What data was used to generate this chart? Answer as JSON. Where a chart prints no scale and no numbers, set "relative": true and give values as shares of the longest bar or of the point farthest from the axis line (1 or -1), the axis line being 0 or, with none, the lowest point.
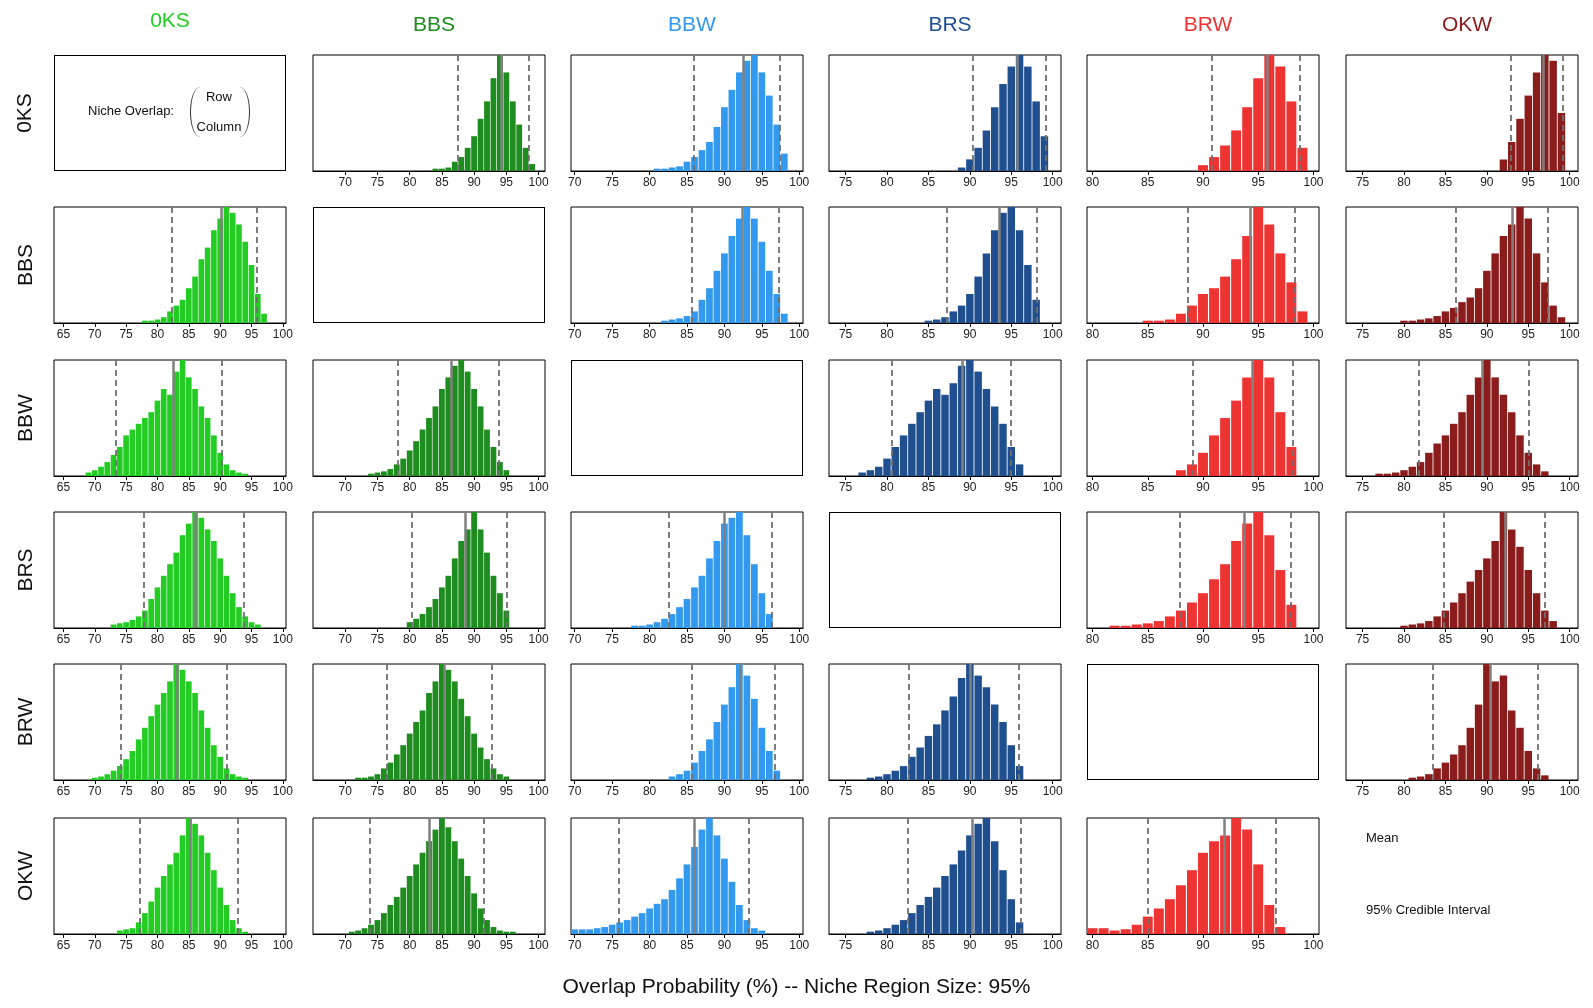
{
  "chart_data": [
    {
      "type": "other",
      "title": "0KS",
      "ylabel": "0KS",
      "annotations": [
        "Niche Overlap:",
        "Row",
        "Column"
      ]
    },
    {
      "type": "bar",
      "title": "BBS",
      "color": "#1e8c1e",
      "relative": true,
      "tick_labels": "x",
      "xlim": [
        65,
        101
      ],
      "xticks": [
        70,
        75,
        80,
        85,
        90,
        95,
        100
      ],
      "x": [
        84,
        85,
        86,
        87,
        88,
        89,
        90,
        91,
        92,
        93,
        94,
        95,
        96,
        97,
        98,
        99
      ],
      "values": [
        0.02,
        0.02,
        0.03,
        0.08,
        0.12,
        0.2,
        0.3,
        0.45,
        0.6,
        0.8,
        1,
        0.85,
        0.6,
        0.4,
        0.2,
        0.06
      ],
      "ref_lines": [
        {
          "axis": "x",
          "value": 94.2,
          "line_style": "solid",
          "color": "#808080"
        },
        {
          "axis": "x",
          "value": 87.4,
          "line_style": "dashed",
          "color": "#707070"
        },
        {
          "axis": "x",
          "value": 98.5,
          "line_style": "dashed",
          "color": "#707070"
        }
      ]
    },
    {
      "type": "bar",
      "title": "BBW",
      "color": "#3399ee",
      "relative": true,
      "tick_labels": "x",
      "xlim": [
        69.5,
        100.5
      ],
      "xticks": [
        70,
        75,
        80,
        85,
        90,
        95,
        100
      ],
      "x": [
        81,
        82,
        83,
        84,
        85,
        86,
        87,
        88,
        89,
        90,
        91,
        92,
        93,
        94,
        95,
        96,
        97,
        98
      ],
      "values": [
        0.02,
        0.02,
        0.03,
        0.04,
        0.08,
        0.12,
        0.18,
        0.25,
        0.38,
        0.55,
        0.7,
        0.85,
        0.95,
        1,
        0.85,
        0.65,
        0.4,
        0.15
      ],
      "ref_lines": [
        {
          "axis": "x",
          "value": 92.5,
          "line_style": "solid",
          "color": "#808080"
        },
        {
          "axis": "x",
          "value": 85.9,
          "line_style": "dashed",
          "color": "#707070"
        },
        {
          "axis": "x",
          "value": 97.4,
          "line_style": "dashed",
          "color": "#707070"
        }
      ]
    },
    {
      "type": "bar",
      "title": "BRS",
      "color": "#1f4f8f",
      "relative": true,
      "tick_labels": "x",
      "xlim": [
        73,
        101
      ],
      "xticks": [
        75,
        80,
        85,
        90,
        95,
        100
      ],
      "x": [
        89,
        90,
        91,
        92,
        93,
        94,
        95,
        96,
        97,
        98,
        99
      ],
      "values": [
        0.03,
        0.1,
        0.2,
        0.35,
        0.55,
        0.75,
        0.9,
        1,
        0.9,
        0.6,
        0.3
      ],
      "ref_lines": [
        {
          "axis": "x",
          "value": 95.7,
          "line_style": "solid",
          "color": "#808080"
        },
        {
          "axis": "x",
          "value": 90.4,
          "line_style": "dashed",
          "color": "#707070"
        },
        {
          "axis": "x",
          "value": 99.2,
          "line_style": "dashed",
          "color": "#707070"
        }
      ]
    },
    {
      "type": "bar",
      "title": "BRW",
      "color": "#ee3333",
      "relative": true,
      "tick_labels": "x",
      "xlim": [
        79.5,
        100.5
      ],
      "xticks": [
        80,
        85,
        90,
        95,
        100
      ],
      "x": [
        90,
        91,
        92,
        93,
        94,
        95,
        96,
        97,
        98,
        99
      ],
      "values": [
        0.05,
        0.12,
        0.22,
        0.35,
        0.55,
        0.8,
        1,
        0.9,
        0.6,
        0.2
      ],
      "ref_lines": [
        {
          "axis": "x",
          "value": 95.8,
          "line_style": "solid",
          "color": "#808080"
        },
        {
          "axis": "x",
          "value": 90.8,
          "line_style": "dashed",
          "color": "#707070"
        },
        {
          "axis": "x",
          "value": 98.8,
          "line_style": "dashed",
          "color": "#707070"
        }
      ]
    },
    {
      "type": "bar",
      "title": "OKW",
      "color": "#8b1c1c",
      "relative": true,
      "tick_labels": "x",
      "xlim": [
        73,
        101
      ],
      "xticks": [
        75,
        80,
        85,
        90,
        95,
        100
      ],
      "x": [
        92,
        93,
        94,
        95,
        96,
        97,
        98,
        99
      ],
      "values": [
        0.1,
        0.25,
        0.45,
        0.65,
        0.85,
        1,
        0.95,
        0.5
      ],
      "ref_lines": [
        {
          "axis": "x",
          "value": 96.8,
          "line_style": "solid",
          "color": "#808080"
        },
        {
          "axis": "x",
          "value": 92.9,
          "line_style": "dashed",
          "color": "#707070"
        },
        {
          "axis": "x",
          "value": 99.1,
          "line_style": "dashed",
          "color": "#707070"
        }
      ]
    },
    {
      "type": "bar",
      "ylabel": "BBS",
      "color": "#22cc22",
      "relative": true,
      "tick_labels": "x",
      "xlim": [
        63.5,
        100.5
      ],
      "xticks": [
        65,
        70,
        75,
        80,
        85,
        90,
        95,
        100
      ],
      "x": [
        78,
        79,
        80,
        81,
        82,
        83,
        84,
        85,
        86,
        87,
        88,
        89,
        90,
        91,
        92,
        93,
        94,
        95,
        96,
        97
      ],
      "values": [
        0.02,
        0.02,
        0.03,
        0.05,
        0.1,
        0.15,
        0.2,
        0.3,
        0.4,
        0.55,
        0.65,
        0.8,
        0.9,
        1,
        0.95,
        0.85,
        0.7,
        0.5,
        0.25,
        0.08
      ],
      "ref_lines": [
        {
          "axis": "x",
          "value": 90.2,
          "line_style": "solid",
          "color": "#808080"
        },
        {
          "axis": "x",
          "value": 82.3,
          "line_style": "dashed",
          "color": "#707070"
        },
        {
          "axis": "x",
          "value": 95.9,
          "line_style": "dashed",
          "color": "#707070"
        }
      ]
    },
    {
      "type": "bar",
      "color": "#3399ee",
      "relative": true,
      "tick_labels": "x",
      "xlim": [
        69.5,
        100.5
      ],
      "xticks": [
        70,
        75,
        80,
        85,
        90,
        95,
        100
      ],
      "x": [
        82,
        83,
        84,
        85,
        86,
        87,
        88,
        89,
        90,
        91,
        92,
        93,
        94,
        95,
        96,
        97,
        98
      ],
      "values": [
        0.02,
        0.03,
        0.04,
        0.06,
        0.1,
        0.2,
        0.3,
        0.45,
        0.6,
        0.75,
        0.9,
        1,
        0.9,
        0.7,
        0.45,
        0.25,
        0.08
      ],
      "ref_lines": [
        {
          "axis": "x",
          "value": 92.4,
          "line_style": "solid",
          "color": "#808080"
        },
        {
          "axis": "x",
          "value": 85.7,
          "line_style": "dashed",
          "color": "#707070"
        },
        {
          "axis": "x",
          "value": 97.3,
          "line_style": "dashed",
          "color": "#707070"
        }
      ]
    },
    {
      "type": "bar",
      "color": "#1f4f8f",
      "relative": true,
      "tick_labels": "x",
      "xlim": [
        73,
        101
      ],
      "xticks": [
        75,
        80,
        85,
        90,
        95,
        100
      ],
      "x": [
        85,
        86,
        87,
        88,
        89,
        90,
        91,
        92,
        93,
        94,
        95,
        96,
        97,
        98
      ],
      "values": [
        0.02,
        0.03,
        0.05,
        0.1,
        0.15,
        0.25,
        0.4,
        0.6,
        0.8,
        0.95,
        1,
        0.8,
        0.5,
        0.2
      ],
      "ref_lines": [
        {
          "axis": "x",
          "value": 93.6,
          "line_style": "solid",
          "color": "#808080"
        },
        {
          "axis": "x",
          "value": 87.2,
          "line_style": "dashed",
          "color": "#707070"
        },
        {
          "axis": "x",
          "value": 98.1,
          "line_style": "dashed",
          "color": "#707070"
        }
      ]
    },
    {
      "type": "bar",
      "color": "#ee3333",
      "relative": true,
      "tick_labels": "x",
      "xlim": [
        79.5,
        100.5
      ],
      "xticks": [
        80,
        85,
        90,
        95,
        100
      ],
      "x": [
        85,
        86,
        87,
        88,
        89,
        90,
        91,
        92,
        93,
        94,
        95,
        96,
        97,
        98,
        99
      ],
      "values": [
        0.02,
        0.02,
        0.03,
        0.08,
        0.15,
        0.25,
        0.3,
        0.4,
        0.55,
        0.75,
        1,
        0.85,
        0.6,
        0.35,
        0.1
      ],
      "ref_lines": [
        {
          "axis": "x",
          "value": 94.3,
          "line_style": "solid",
          "color": "#808080"
        },
        {
          "axis": "x",
          "value": 88.6,
          "line_style": "dashed",
          "color": "#707070"
        },
        {
          "axis": "x",
          "value": 98.3,
          "line_style": "dashed",
          "color": "#707070"
        }
      ]
    },
    {
      "type": "bar",
      "color": "#8b1c1c",
      "relative": true,
      "tick_labels": "x",
      "xlim": [
        73,
        101
      ],
      "xticks": [
        75,
        80,
        85,
        90,
        95,
        100
      ],
      "x": [
        80,
        81,
        82,
        83,
        84,
        85,
        86,
        87,
        88,
        89,
        90,
        91,
        92,
        93,
        94,
        95,
        96,
        97,
        98,
        99
      ],
      "values": [
        0.02,
        0.02,
        0.03,
        0.04,
        0.06,
        0.1,
        0.13,
        0.18,
        0.22,
        0.3,
        0.45,
        0.6,
        0.75,
        0.85,
        1,
        0.9,
        0.6,
        0.35,
        0.15,
        0.05
      ],
      "ref_lines": [
        {
          "axis": "x",
          "value": 93.1,
          "line_style": "solid",
          "color": "#808080"
        },
        {
          "axis": "x",
          "value": 86.3,
          "line_style": "dashed",
          "color": "#707070"
        },
        {
          "axis": "x",
          "value": 97.4,
          "line_style": "dashed",
          "color": "#707070"
        }
      ]
    },
    {
      "type": "bar",
      "ylabel": "BBW",
      "color": "#22cc22",
      "relative": true,
      "tick_labels": "x",
      "xlim": [
        63.5,
        100.5
      ],
      "xticks": [
        65,
        70,
        75,
        80,
        85,
        90,
        95,
        100
      ],
      "x": [
        69,
        70,
        71,
        72,
        73,
        74,
        75,
        76,
        77,
        78,
        79,
        80,
        81,
        82,
        83,
        84,
        85,
        86,
        87,
        88,
        89,
        90,
        91,
        92,
        93,
        94
      ],
      "values": [
        0.03,
        0.05,
        0.08,
        0.12,
        0.18,
        0.25,
        0.35,
        0.4,
        0.45,
        0.5,
        0.55,
        0.65,
        0.75,
        0.7,
        0.9,
        1,
        0.85,
        0.75,
        0.6,
        0.5,
        0.35,
        0.2,
        0.1,
        0.05,
        0.03,
        0.02
      ],
      "ref_lines": [
        {
          "axis": "x",
          "value": 82.5,
          "line_style": "solid",
          "color": "#808080"
        },
        {
          "axis": "x",
          "value": 73.3,
          "line_style": "dashed",
          "color": "#707070"
        },
        {
          "axis": "x",
          "value": 90.2,
          "line_style": "dashed",
          "color": "#707070"
        }
      ]
    },
    {
      "type": "bar",
      "color": "#1e8c1e",
      "relative": true,
      "tick_labels": "x",
      "xlim": [
        65,
        101
      ],
      "xticks": [
        70,
        75,
        80,
        85,
        90,
        95,
        100
      ],
      "x": [
        74,
        75,
        76,
        77,
        78,
        79,
        80,
        81,
        82,
        83,
        84,
        85,
        86,
        87,
        88,
        89,
        90,
        91,
        92,
        93,
        94,
        95
      ],
      "values": [
        0.02,
        0.03,
        0.04,
        0.06,
        0.1,
        0.15,
        0.22,
        0.3,
        0.4,
        0.5,
        0.6,
        0.75,
        0.85,
        0.95,
        1,
        0.9,
        0.75,
        0.6,
        0.4,
        0.25,
        0.12,
        0.05
      ],
      "ref_lines": [
        {
          "axis": "x",
          "value": 86.4,
          "line_style": "solid",
          "color": "#808080"
        },
        {
          "axis": "x",
          "value": 78.2,
          "line_style": "dashed",
          "color": "#707070"
        },
        {
          "axis": "x",
          "value": 93.9,
          "line_style": "dashed",
          "color": "#707070"
        }
      ]
    },
    {
      "type": "bar",
      "color": "#1f4f8f",
      "relative": true,
      "tick_labels": "x",
      "xlim": [
        73,
        101
      ],
      "xticks": [
        75,
        80,
        85,
        90,
        95,
        100
      ],
      "x": [
        77,
        78,
        79,
        80,
        81,
        82,
        83,
        84,
        85,
        86,
        87,
        88,
        89,
        90,
        91,
        92,
        93,
        94,
        95,
        96
      ],
      "values": [
        0.03,
        0.05,
        0.08,
        0.15,
        0.25,
        0.35,
        0.45,
        0.55,
        0.65,
        0.75,
        0.7,
        0.8,
        0.95,
        1,
        0.9,
        0.75,
        0.6,
        0.45,
        0.25,
        0.1
      ],
      "ref_lines": [
        {
          "axis": "x",
          "value": 89.1,
          "line_style": "solid",
          "color": "#808080"
        },
        {
          "axis": "x",
          "value": 80.6,
          "line_style": "dashed",
          "color": "#707070"
        },
        {
          "axis": "x",
          "value": 94.9,
          "line_style": "dashed",
          "color": "#707070"
        }
      ]
    },
    {
      "type": "bar",
      "color": "#ee3333",
      "relative": true,
      "tick_labels": "x",
      "xlim": [
        79.5,
        100.5
      ],
      "xticks": [
        80,
        85,
        90,
        95,
        100
      ],
      "x": [
        88,
        89,
        90,
        91,
        92,
        93,
        94,
        95,
        96,
        97,
        98
      ],
      "values": [
        0.05,
        0.1,
        0.2,
        0.35,
        0.5,
        0.65,
        0.85,
        1,
        0.85,
        0.55,
        0.25
      ],
      "ref_lines": [
        {
          "axis": "x",
          "value": 94.5,
          "line_style": "solid",
          "color": "#808080"
        },
        {
          "axis": "x",
          "value": 89.1,
          "line_style": "dashed",
          "color": "#707070"
        },
        {
          "axis": "x",
          "value": 98.1,
          "line_style": "dashed",
          "color": "#707070"
        }
      ]
    },
    {
      "type": "bar",
      "color": "#8b1c1c",
      "relative": true,
      "tick_labels": "x",
      "xlim": [
        73,
        101
      ],
      "xticks": [
        75,
        80,
        85,
        90,
        95,
        100
      ],
      "x": [
        77,
        78,
        79,
        80,
        81,
        82,
        83,
        84,
        85,
        86,
        87,
        88,
        89,
        90,
        91,
        92,
        93,
        94,
        95,
        96,
        97
      ],
      "values": [
        0.02,
        0.02,
        0.03,
        0.05,
        0.08,
        0.12,
        0.2,
        0.28,
        0.35,
        0.45,
        0.55,
        0.7,
        0.85,
        1,
        0.85,
        0.7,
        0.55,
        0.35,
        0.2,
        0.1,
        0.04
      ],
      "ref_lines": [
        {
          "axis": "x",
          "value": 89.5,
          "line_style": "solid",
          "color": "#808080"
        },
        {
          "axis": "x",
          "value": 81.8,
          "line_style": "dashed",
          "color": "#707070"
        },
        {
          "axis": "x",
          "value": 95,
          "line_style": "dashed",
          "color": "#707070"
        }
      ]
    },
    {
      "type": "bar",
      "ylabel": "BRS",
      "color": "#22cc22",
      "relative": true,
      "tick_labels": "x",
      "xlim": [
        63.5,
        100.5
      ],
      "xticks": [
        65,
        70,
        75,
        80,
        85,
        90,
        95,
        100
      ],
      "x": [
        73,
        74,
        75,
        76,
        77,
        78,
        79,
        80,
        81,
        82,
        83,
        84,
        85,
        86,
        87,
        88,
        89,
        90,
        91,
        92,
        93,
        94,
        95,
        96
      ],
      "values": [
        0.03,
        0.04,
        0.05,
        0.07,
        0.1,
        0.15,
        0.25,
        0.35,
        0.45,
        0.55,
        0.65,
        0.8,
        0.9,
        1,
        0.95,
        0.85,
        0.75,
        0.6,
        0.45,
        0.3,
        0.18,
        0.1,
        0.05,
        0.03
      ],
      "ref_lines": [
        {
          "axis": "x",
          "value": 86.1,
          "line_style": "solid",
          "color": "#808080"
        },
        {
          "axis": "x",
          "value": 77.8,
          "line_style": "dashed",
          "color": "#707070"
        },
        {
          "axis": "x",
          "value": 93.8,
          "line_style": "dashed",
          "color": "#707070"
        }
      ]
    },
    {
      "type": "bar",
      "color": "#1e8c1e",
      "relative": true,
      "tick_labels": "x",
      "xlim": [
        65,
        101
      ],
      "xticks": [
        70,
        75,
        80,
        85,
        90,
        95,
        100
      ],
      "x": [
        80,
        81,
        82,
        83,
        84,
        85,
        86,
        87,
        88,
        89,
        90,
        91,
        92,
        93,
        94,
        95
      ],
      "values": [
        0.05,
        0.08,
        0.12,
        0.18,
        0.25,
        0.35,
        0.45,
        0.6,
        0.75,
        0.85,
        1,
        0.85,
        0.65,
        0.45,
        0.3,
        0.15
      ],
      "ref_lines": [
        {
          "axis": "x",
          "value": 88.6,
          "line_style": "solid",
          "color": "#808080"
        },
        {
          "axis": "x",
          "value": 80.3,
          "line_style": "dashed",
          "color": "#707070"
        },
        {
          "axis": "x",
          "value": 95.1,
          "line_style": "dashed",
          "color": "#707070"
        }
      ]
    },
    {
      "type": "bar",
      "color": "#3399ee",
      "relative": true,
      "tick_labels": "x",
      "xlim": [
        69.5,
        100.5
      ],
      "xticks": [
        70,
        75,
        80,
        85,
        90,
        95,
        100
      ],
      "x": [
        78,
        79,
        80,
        81,
        82,
        83,
        84,
        85,
        86,
        87,
        88,
        89,
        90,
        91,
        92,
        93,
        94,
        95,
        96
      ],
      "values": [
        0.02,
        0.02,
        0.03,
        0.05,
        0.08,
        0.12,
        0.18,
        0.25,
        0.35,
        0.45,
        0.6,
        0.75,
        0.9,
        0.95,
        1,
        0.8,
        0.55,
        0.3,
        0.12
      ],
      "ref_lines": [
        {
          "axis": "x",
          "value": 90,
          "line_style": "solid",
          "color": "#808080"
        },
        {
          "axis": "x",
          "value": 82.5,
          "line_style": "dashed",
          "color": "#707070"
        },
        {
          "axis": "x",
          "value": 96.3,
          "line_style": "dashed",
          "color": "#707070"
        }
      ]
    },
    {
      "type": "bar",
      "color": "#ee3333",
      "relative": true,
      "tick_labels": "x",
      "xlim": [
        79.5,
        100.5
      ],
      "xticks": [
        80,
        85,
        90,
        95,
        100
      ],
      "x": [
        82,
        83,
        84,
        85,
        86,
        87,
        88,
        89,
        90,
        91,
        92,
        93,
        94,
        95,
        96,
        97,
        98
      ],
      "values": [
        0.02,
        0.02,
        0.03,
        0.04,
        0.06,
        0.1,
        0.15,
        0.22,
        0.3,
        0.42,
        0.55,
        0.75,
        0.9,
        1,
        0.8,
        0.5,
        0.2
      ],
      "ref_lines": [
        {
          "axis": "x",
          "value": 93.7,
          "line_style": "solid",
          "color": "#808080"
        },
        {
          "axis": "x",
          "value": 87.9,
          "line_style": "dashed",
          "color": "#707070"
        },
        {
          "axis": "x",
          "value": 97.9,
          "line_style": "dashed",
          "color": "#707070"
        }
      ]
    },
    {
      "type": "bar",
      "color": "#8b1c1c",
      "relative": true,
      "tick_labels": "x",
      "xlim": [
        73,
        101
      ],
      "xticks": [
        75,
        80,
        85,
        90,
        95,
        100
      ],
      "x": [
        80,
        81,
        82,
        83,
        84,
        85,
        86,
        87,
        88,
        89,
        90,
        91,
        92,
        93,
        94,
        95,
        96,
        97,
        98
      ],
      "values": [
        0.02,
        0.03,
        0.04,
        0.06,
        0.1,
        0.15,
        0.22,
        0.3,
        0.4,
        0.5,
        0.6,
        0.75,
        1,
        0.85,
        0.7,
        0.5,
        0.3,
        0.15,
        0.06
      ],
      "ref_lines": [
        {
          "axis": "x",
          "value": 92.2,
          "line_style": "solid",
          "color": "#808080"
        },
        {
          "axis": "x",
          "value": 84.8,
          "line_style": "dashed",
          "color": "#707070"
        },
        {
          "axis": "x",
          "value": 97,
          "line_style": "dashed",
          "color": "#707070"
        }
      ]
    },
    {
      "type": "bar",
      "ylabel": "BRW",
      "color": "#22cc22",
      "relative": true,
      "tick_labels": "x",
      "xlim": [
        63.5,
        100.5
      ],
      "xticks": [
        65,
        70,
        75,
        80,
        85,
        90,
        95,
        100
      ],
      "x": [
        70,
        71,
        72,
        73,
        74,
        75,
        76,
        77,
        78,
        79,
        80,
        81,
        82,
        83,
        84,
        85,
        86,
        87,
        88,
        89,
        90,
        91,
        92,
        93,
        94
      ],
      "values": [
        0.02,
        0.03,
        0.05,
        0.08,
        0.12,
        0.18,
        0.25,
        0.35,
        0.45,
        0.55,
        0.65,
        0.75,
        0.85,
        1,
        0.95,
        0.85,
        0.75,
        0.6,
        0.45,
        0.3,
        0.2,
        0.1,
        0.05,
        0.03,
        0.02
      ],
      "ref_lines": [
        {
          "axis": "x",
          "value": 83.1,
          "line_style": "solid",
          "color": "#808080"
        },
        {
          "axis": "x",
          "value": 74.2,
          "line_style": "dashed",
          "color": "#707070"
        },
        {
          "axis": "x",
          "value": 91.1,
          "line_style": "dashed",
          "color": "#707070"
        }
      ]
    },
    {
      "type": "bar",
      "color": "#1e8c1e",
      "relative": true,
      "tick_labels": "x",
      "xlim": [
        65,
        101
      ],
      "xticks": [
        70,
        75,
        80,
        85,
        90,
        95,
        100
      ],
      "x": [
        72,
        73,
        74,
        75,
        76,
        77,
        78,
        79,
        80,
        81,
        82,
        83,
        84,
        85,
        86,
        87,
        88,
        89,
        90,
        91,
        92,
        93,
        94,
        95
      ],
      "values": [
        0.02,
        0.02,
        0.03,
        0.05,
        0.1,
        0.15,
        0.22,
        0.3,
        0.4,
        0.5,
        0.6,
        0.75,
        0.85,
        1,
        0.95,
        0.85,
        0.7,
        0.55,
        0.4,
        0.28,
        0.18,
        0.1,
        0.05,
        0.03
      ],
      "ref_lines": [
        {
          "axis": "x",
          "value": 85.4,
          "line_style": "solid",
          "color": "#808080"
        },
        {
          "axis": "x",
          "value": 76.5,
          "line_style": "dashed",
          "color": "#707070"
        },
        {
          "axis": "x",
          "value": 92.8,
          "line_style": "dashed",
          "color": "#707070"
        }
      ]
    },
    {
      "type": "bar",
      "color": "#3399ee",
      "relative": true,
      "tick_labels": "x",
      "xlim": [
        69.5,
        100.5
      ],
      "xticks": [
        70,
        75,
        80,
        85,
        90,
        95,
        100
      ],
      "x": [
        83,
        84,
        85,
        86,
        87,
        88,
        89,
        90,
        91,
        92,
        93,
        94,
        95,
        96,
        97
      ],
      "values": [
        0.03,
        0.05,
        0.08,
        0.15,
        0.25,
        0.35,
        0.5,
        0.65,
        0.8,
        1,
        0.9,
        0.7,
        0.45,
        0.25,
        0.08
      ],
      "ref_lines": [
        {
          "axis": "x",
          "value": 92.1,
          "line_style": "solid",
          "color": "#808080"
        },
        {
          "axis": "x",
          "value": 85.6,
          "line_style": "dashed",
          "color": "#707070"
        },
        {
          "axis": "x",
          "value": 96.7,
          "line_style": "dashed",
          "color": "#707070"
        }
      ]
    },
    {
      "type": "bar",
      "color": "#1f4f8f",
      "relative": true,
      "tick_labels": "x",
      "xlim": [
        73,
        101
      ],
      "xticks": [
        75,
        80,
        85,
        90,
        95,
        100
      ],
      "x": [
        78,
        79,
        80,
        81,
        82,
        83,
        84,
        85,
        86,
        87,
        88,
        89,
        90,
        91,
        92,
        93,
        94,
        95,
        96
      ],
      "values": [
        0.02,
        0.03,
        0.05,
        0.08,
        0.12,
        0.2,
        0.28,
        0.38,
        0.48,
        0.6,
        0.72,
        0.88,
        1,
        0.9,
        0.8,
        0.65,
        0.5,
        0.3,
        0.12
      ],
      "ref_lines": [
        {
          "axis": "x",
          "value": 90,
          "line_style": "solid",
          "color": "#808080"
        },
        {
          "axis": "x",
          "value": 82.6,
          "line_style": "dashed",
          "color": "#707070"
        },
        {
          "axis": "x",
          "value": 95.9,
          "line_style": "dashed",
          "color": "#707070"
        }
      ]
    },
    {
      "type": "bar",
      "color": "#8b1c1c",
      "relative": true,
      "tick_labels": "x",
      "xlim": [
        73,
        101
      ],
      "xticks": [
        75,
        80,
        85,
        90,
        95,
        100
      ],
      "x": [
        81,
        82,
        83,
        84,
        85,
        86,
        87,
        88,
        89,
        90,
        91,
        92,
        93,
        94,
        95,
        96,
        97
      ],
      "values": [
        0.02,
        0.03,
        0.05,
        0.1,
        0.15,
        0.22,
        0.3,
        0.45,
        0.65,
        1,
        0.85,
        0.9,
        0.6,
        0.45,
        0.25,
        0.1,
        0.04
      ],
      "ref_lines": [
        {
          "axis": "x",
          "value": 90.4,
          "line_style": "solid",
          "color": "#808080"
        },
        {
          "axis": "x",
          "value": 83.5,
          "line_style": "dashed",
          "color": "#707070"
        },
        {
          "axis": "x",
          "value": 96.1,
          "line_style": "dashed",
          "color": "#707070"
        }
      ]
    },
    {
      "type": "bar",
      "ylabel": "OKW",
      "color": "#22cc22",
      "relative": true,
      "tick_labels": "x",
      "xlim": [
        63.5,
        100.5
      ],
      "xticks": [
        65,
        70,
        75,
        80,
        85,
        90,
        95,
        100
      ],
      "x": [
        74,
        75,
        76,
        77,
        78,
        79,
        80,
        81,
        82,
        83,
        84,
        85,
        86,
        87,
        88,
        89,
        90,
        91,
        92,
        93,
        94
      ],
      "values": [
        0.03,
        0.04,
        0.05,
        0.1,
        0.18,
        0.28,
        0.4,
        0.5,
        0.6,
        0.7,
        0.85,
        1,
        0.95,
        0.85,
        0.7,
        0.55,
        0.4,
        0.25,
        0.12,
        0.05,
        0.02
      ],
      "ref_lines": [
        {
          "axis": "x",
          "value": 85.3,
          "line_style": "solid",
          "color": "#808080"
        },
        {
          "axis": "x",
          "value": 77.2,
          "line_style": "dashed",
          "color": "#707070"
        },
        {
          "axis": "x",
          "value": 92.8,
          "line_style": "dashed",
          "color": "#707070"
        }
      ]
    },
    {
      "type": "bar",
      "color": "#1e8c1e",
      "relative": true,
      "tick_labels": "x",
      "xlim": [
        65,
        101
      ],
      "xticks": [
        70,
        75,
        80,
        85,
        90,
        95,
        100
      ],
      "x": [
        71,
        72,
        73,
        74,
        75,
        76,
        77,
        78,
        79,
        80,
        81,
        82,
        83,
        84,
        85,
        86,
        87,
        88,
        89,
        90,
        91,
        92,
        93,
        94,
        95,
        96
      ],
      "values": [
        0.02,
        0.03,
        0.05,
        0.08,
        0.12,
        0.18,
        0.25,
        0.32,
        0.4,
        0.5,
        0.6,
        0.7,
        0.8,
        0.9,
        1,
        0.92,
        0.8,
        0.65,
        0.5,
        0.35,
        0.22,
        0.12,
        0.06,
        0.03,
        0.02,
        0.02
      ],
      "ref_lines": [
        {
          "axis": "x",
          "value": 83.1,
          "line_style": "solid",
          "color": "#808080"
        },
        {
          "axis": "x",
          "value": 73.8,
          "line_style": "dashed",
          "color": "#707070"
        },
        {
          "axis": "x",
          "value": 91.5,
          "line_style": "dashed",
          "color": "#707070"
        }
      ]
    },
    {
      "type": "bar",
      "color": "#3399ee",
      "relative": true,
      "tick_labels": "x",
      "xlim": [
        69.5,
        100.5
      ],
      "xticks": [
        70,
        75,
        80,
        85,
        90,
        95,
        100
      ],
      "x": [
        70,
        71,
        72,
        73,
        74,
        75,
        76,
        77,
        78,
        79,
        80,
        81,
        82,
        83,
        84,
        85,
        86,
        87,
        88,
        89,
        90,
        91,
        92,
        93,
        94,
        95
      ],
      "values": [
        0.04,
        0.04,
        0.04,
        0.05,
        0.06,
        0.08,
        0.1,
        0.12,
        0.15,
        0.18,
        0.22,
        0.26,
        0.3,
        0.38,
        0.48,
        0.6,
        0.75,
        0.9,
        1,
        0.85,
        0.65,
        0.45,
        0.25,
        0.12,
        0.05,
        0.03
      ],
      "ref_lines": [
        {
          "axis": "x",
          "value": 86,
          "line_style": "solid",
          "color": "#808080"
        },
        {
          "axis": "x",
          "value": 75.9,
          "line_style": "dashed",
          "color": "#707070"
        },
        {
          "axis": "x",
          "value": 93.2,
          "line_style": "dashed",
          "color": "#707070"
        }
      ]
    },
    {
      "type": "bar",
      "color": "#1f4f8f",
      "relative": true,
      "tick_labels": "x",
      "xlim": [
        73,
        101
      ],
      "xticks": [
        75,
        80,
        85,
        90,
        95,
        100
      ],
      "x": [
        78,
        79,
        80,
        81,
        82,
        83,
        84,
        85,
        86,
        87,
        88,
        89,
        90,
        91,
        92,
        93,
        94,
        95,
        96
      ],
      "values": [
        0.02,
        0.03,
        0.05,
        0.08,
        0.12,
        0.18,
        0.25,
        0.32,
        0.4,
        0.5,
        0.6,
        0.72,
        0.85,
        0.95,
        1,
        0.8,
        0.55,
        0.3,
        0.1
      ],
      "ref_lines": [
        {
          "axis": "x",
          "value": 90.3,
          "line_style": "solid",
          "color": "#808080"
        },
        {
          "axis": "x",
          "value": 82.5,
          "line_style": "dashed",
          "color": "#707070"
        },
        {
          "axis": "x",
          "value": 96.1,
          "line_style": "dashed",
          "color": "#707070"
        }
      ]
    },
    {
      "type": "bar",
      "color": "#ee3333",
      "relative": true,
      "tick_labels": "x",
      "xlim": [
        79.5,
        100.5
      ],
      "xticks": [
        80,
        85,
        90,
        95,
        100
      ],
      "x": [
        80,
        81,
        82,
        83,
        84,
        85,
        86,
        87,
        88,
        89,
        90,
        91,
        92,
        93,
        94,
        95,
        96,
        97
      ],
      "values": [
        0.05,
        0.05,
        0.03,
        0.04,
        0.08,
        0.15,
        0.22,
        0.3,
        0.42,
        0.55,
        0.7,
        0.8,
        0.85,
        1,
        0.9,
        0.6,
        0.25,
        0.06
      ],
      "ref_lines": [
        {
          "axis": "x",
          "value": 91.9,
          "line_style": "solid",
          "color": "#808080"
        },
        {
          "axis": "x",
          "value": 85,
          "line_style": "dashed",
          "color": "#707070"
        },
        {
          "axis": "x",
          "value": 96.6,
          "line_style": "dashed",
          "color": "#707070"
        }
      ]
    },
    {
      "type": "other",
      "annotations": [
        "Mean",
        "95% Credible Interval"
      ]
    },
    {
      "type": "other",
      "annotations": [
        "Overlap Probability (%) -- Niche Region Size: 95%"
      ]
    }
  ]
}
